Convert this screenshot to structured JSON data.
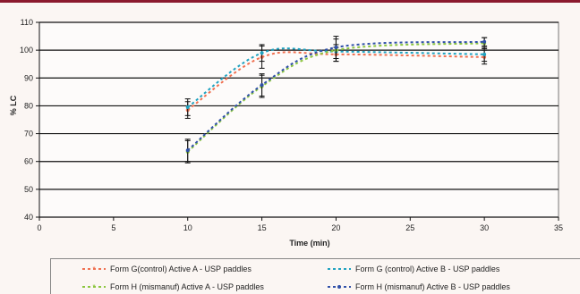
{
  "chart_data": {
    "type": "line",
    "title": "",
    "xlabel": "Time (min)",
    "ylabel": "% LC",
    "xlim": [
      0,
      35
    ],
    "ylim": [
      40,
      110
    ],
    "xticks": [
      0,
      5,
      10,
      15,
      20,
      25,
      30,
      35
    ],
    "yticks": [
      40,
      50,
      60,
      70,
      80,
      90,
      100,
      110
    ],
    "grid": "horizontal",
    "legend_position": "bottom",
    "series": [
      {
        "name": "Form G(control) Active A - USP paddles",
        "color": "#f07050",
        "x": [
          10,
          15,
          20,
          30
        ],
        "y": [
          78.5,
          97.5,
          98.5,
          97.5
        ],
        "err": [
          3,
          4,
          2.5,
          2.5
        ]
      },
      {
        "name": "Form G (control) Active B - USP paddles",
        "color": "#1fa2c0",
        "x": [
          10,
          15,
          20,
          30
        ],
        "y": [
          79.5,
          99,
          99.5,
          98.5
        ],
        "err": [
          3,
          3,
          2.5,
          2.5
        ]
      },
      {
        "name": "Form H (mismanuf) Active A - USP paddles",
        "color": "#8cc63f",
        "x": [
          10,
          15,
          20,
          30
        ],
        "y": [
          63.5,
          87,
          100,
          102.5
        ],
        "err": [
          4,
          4,
          4,
          2
        ]
      },
      {
        "name": "Form H (mismanuf) Active B - USP paddles",
        "color": "#3050a8",
        "x": [
          10,
          15,
          20,
          30
        ],
        "y": [
          64,
          87.5,
          101,
          103
        ],
        "err": [
          4,
          4,
          4,
          1.5
        ]
      }
    ]
  }
}
